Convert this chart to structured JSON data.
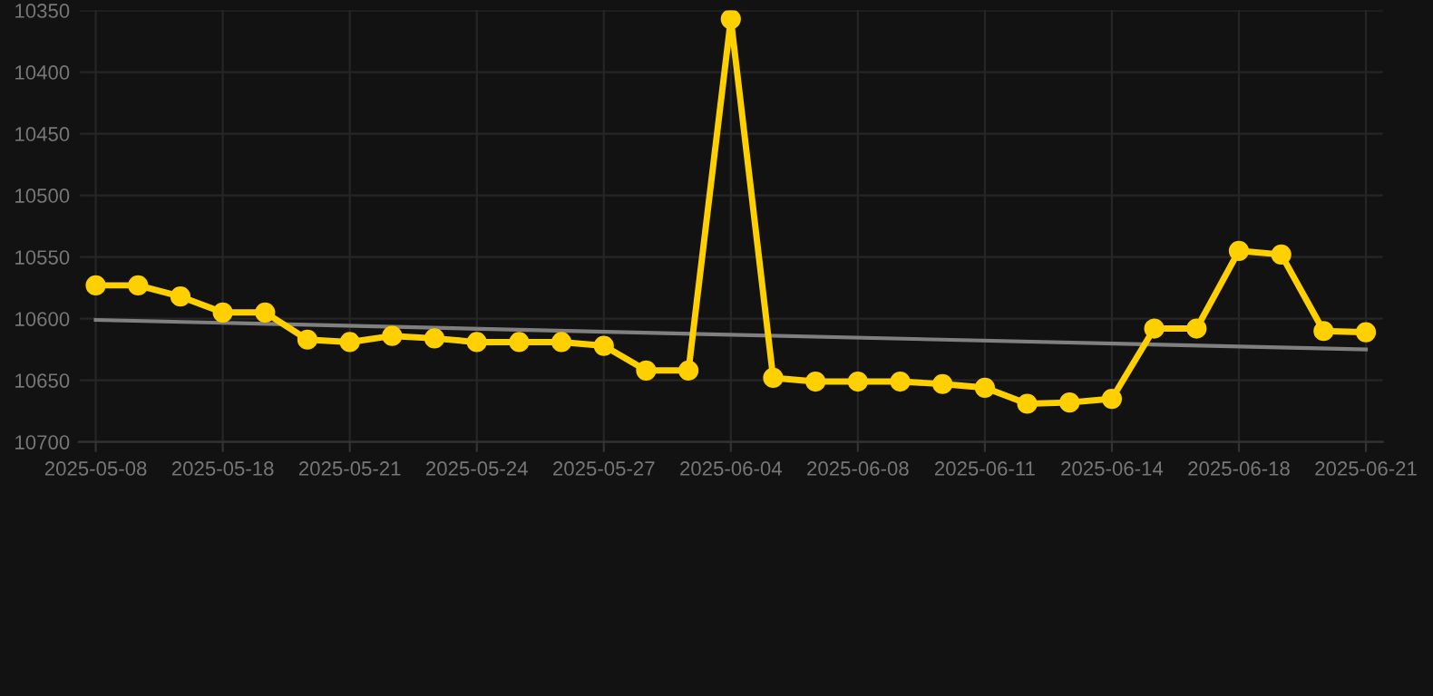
{
  "chart_data": {
    "type": "line",
    "categories": [
      "2025-05-08",
      null,
      null,
      "2025-05-18",
      null,
      null,
      "2025-05-21",
      null,
      null,
      "2025-05-24",
      null,
      null,
      "2025-05-27",
      null,
      null,
      "2025-06-04",
      null,
      null,
      "2025-06-08",
      null,
      null,
      "2025-06-11",
      null,
      null,
      "2025-06-14",
      null,
      null,
      "2025-06-18",
      null,
      null,
      "2025-06-21"
    ],
    "series": [
      {
        "color": "#ffd000",
        "marker": "circle",
        "values": [
          10573,
          10573,
          10582,
          10595,
          10595,
          10617,
          10619,
          10614,
          10616,
          10619,
          10619,
          10619,
          10622,
          10642,
          10642,
          10357,
          10648,
          10651,
          10651,
          10651,
          10653,
          10656,
          10669,
          10668,
          10665,
          10608,
          10608,
          10545,
          10548,
          10610,
          10611
        ]
      },
      {
        "type": "line",
        "color": "#808080",
        "marker": "none",
        "values": [
          10601,
          null,
          null,
          null,
          null,
          null,
          null,
          null,
          null,
          null,
          null,
          null,
          null,
          null,
          null,
          null,
          null,
          null,
          null,
          null,
          null,
          null,
          null,
          null,
          null,
          null,
          null,
          null,
          null,
          null,
          10625
        ]
      }
    ],
    "ylim": [
      10700,
      10350
    ],
    "yticks": [
      10350,
      10400,
      10450,
      10500,
      10550,
      10600,
      10650,
      10700
    ],
    "grid": true,
    "line_style": "solid"
  }
}
